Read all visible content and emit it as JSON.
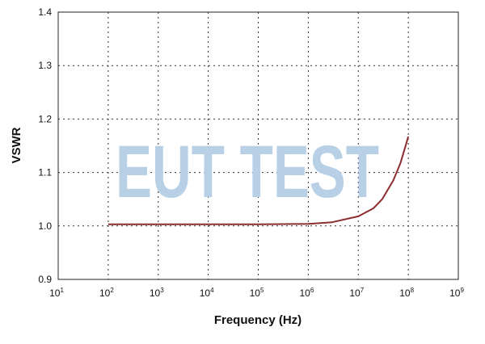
{
  "chart_data": {
    "type": "line",
    "title": "",
    "xlabel": "Frequency (Hz)",
    "ylabel": "VSWR",
    "xscale": "log",
    "xlim": [
      10,
      1000000000
    ],
    "ylim": [
      0.9,
      1.4
    ],
    "x_ticks": [
      {
        "base": "10",
        "exp": "1",
        "value": 10
      },
      {
        "base": "10",
        "exp": "2",
        "value": 100
      },
      {
        "base": "10",
        "exp": "3",
        "value": 1000
      },
      {
        "base": "10",
        "exp": "4",
        "value": 10000
      },
      {
        "base": "10",
        "exp": "5",
        "value": 100000
      },
      {
        "base": "10",
        "exp": "6",
        "value": 1000000
      },
      {
        "base": "10",
        "exp": "7",
        "value": 10000000
      },
      {
        "base": "10",
        "exp": "8",
        "value": 100000000
      },
      {
        "base": "10",
        "exp": "9",
        "value": 1000000000
      }
    ],
    "y_ticks": [
      "0.9",
      "1.0",
      "1.1",
      "1.2",
      "1.3",
      "1.4"
    ],
    "grid": true,
    "series": [
      {
        "color": "#8b2c2f",
        "x": [
          100,
          1000,
          10000,
          100000,
          1000000,
          3000000,
          10000000,
          20000000,
          30000000,
          50000000,
          70000000,
          100000000
        ],
        "y": [
          1.003,
          1.003,
          1.003,
          1.003,
          1.004,
          1.007,
          1.018,
          1.033,
          1.05,
          1.085,
          1.118,
          1.167
        ]
      }
    ],
    "watermark": "EUT TEST",
    "watermark_color": "#b7d0e6"
  }
}
